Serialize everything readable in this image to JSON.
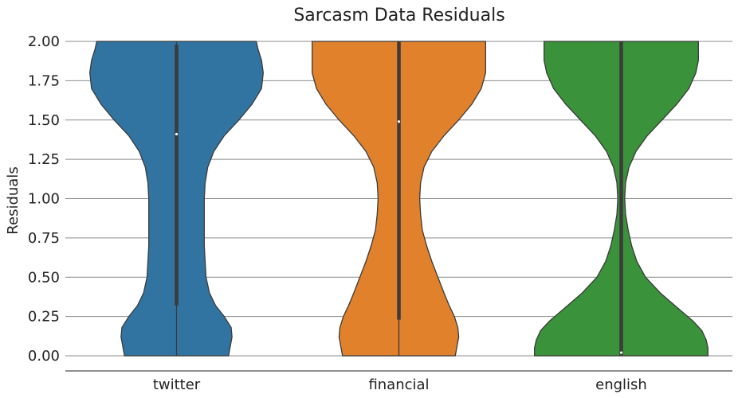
{
  "chart_data": {
    "type": "violin",
    "title": "Sarcasm Data Residuals",
    "xlabel": "",
    "ylabel": "Residuals",
    "ylim": [
      -0.1,
      2.0
    ],
    "yticks": [
      0.0,
      0.25,
      0.5,
      0.75,
      1.0,
      1.25,
      1.5,
      1.75,
      2.0
    ],
    "ytick_labels": [
      "0.00",
      "0.25",
      "0.50",
      "0.75",
      "1.00",
      "1.25",
      "1.50",
      "1.75",
      "2.00"
    ],
    "grid": "horizontal",
    "categories": [
      "twitter",
      "financial",
      "english"
    ],
    "series": [
      {
        "category": "twitter",
        "color": "#3274a1",
        "min": 0.0,
        "q1": 0.32,
        "median": 1.41,
        "q3": 1.98,
        "max": 2.0,
        "density": [
          [
            0.0,
            0.6
          ],
          [
            0.06,
            0.62
          ],
          [
            0.12,
            0.64
          ],
          [
            0.18,
            0.63
          ],
          [
            0.25,
            0.55
          ],
          [
            0.32,
            0.45
          ],
          [
            0.4,
            0.38
          ],
          [
            0.5,
            0.34
          ],
          [
            0.6,
            0.33
          ],
          [
            0.7,
            0.32
          ],
          [
            0.8,
            0.32
          ],
          [
            0.9,
            0.32
          ],
          [
            1.0,
            0.32
          ],
          [
            1.1,
            0.33
          ],
          [
            1.2,
            0.36
          ],
          [
            1.3,
            0.43
          ],
          [
            1.4,
            0.55
          ],
          [
            1.5,
            0.72
          ],
          [
            1.6,
            0.87
          ],
          [
            1.7,
            0.98
          ],
          [
            1.8,
            1.0
          ],
          [
            1.88,
            0.98
          ],
          [
            1.95,
            0.94
          ],
          [
            2.0,
            0.92
          ]
        ]
      },
      {
        "category": "financial",
        "color": "#e1812c",
        "min": 0.0,
        "q1": 0.23,
        "median": 1.49,
        "q3": 2.0,
        "max": 2.0,
        "density": [
          [
            0.0,
            0.65
          ],
          [
            0.06,
            0.67
          ],
          [
            0.12,
            0.69
          ],
          [
            0.18,
            0.68
          ],
          [
            0.25,
            0.64
          ],
          [
            0.32,
            0.58
          ],
          [
            0.4,
            0.52
          ],
          [
            0.5,
            0.45
          ],
          [
            0.6,
            0.38
          ],
          [
            0.7,
            0.32
          ],
          [
            0.8,
            0.27
          ],
          [
            0.9,
            0.25
          ],
          [
            1.0,
            0.24
          ],
          [
            1.1,
            0.25
          ],
          [
            1.2,
            0.29
          ],
          [
            1.3,
            0.38
          ],
          [
            1.4,
            0.52
          ],
          [
            1.5,
            0.69
          ],
          [
            1.6,
            0.84
          ],
          [
            1.7,
            0.95
          ],
          [
            1.8,
            1.0
          ],
          [
            1.88,
            1.0
          ],
          [
            1.95,
            1.0
          ],
          [
            2.0,
            1.0
          ]
        ]
      },
      {
        "category": "english",
        "color": "#3a923a",
        "min": 0.0,
        "q1": 0.0,
        "median": 0.02,
        "q3": 2.0,
        "max": 2.0,
        "density": [
          [
            0.0,
            1.0
          ],
          [
            0.05,
            1.0
          ],
          [
            0.1,
            0.98
          ],
          [
            0.16,
            0.93
          ],
          [
            0.22,
            0.83
          ],
          [
            0.3,
            0.66
          ],
          [
            0.4,
            0.45
          ],
          [
            0.5,
            0.28
          ],
          [
            0.6,
            0.18
          ],
          [
            0.7,
            0.12
          ],
          [
            0.8,
            0.08
          ],
          [
            0.9,
            0.05
          ],
          [
            1.0,
            0.04
          ],
          [
            1.1,
            0.05
          ],
          [
            1.2,
            0.09
          ],
          [
            1.3,
            0.17
          ],
          [
            1.4,
            0.3
          ],
          [
            1.5,
            0.47
          ],
          [
            1.6,
            0.64
          ],
          [
            1.7,
            0.78
          ],
          [
            1.8,
            0.86
          ],
          [
            1.88,
            0.89
          ],
          [
            1.95,
            0.89
          ],
          [
            2.0,
            0.89
          ]
        ]
      }
    ]
  }
}
